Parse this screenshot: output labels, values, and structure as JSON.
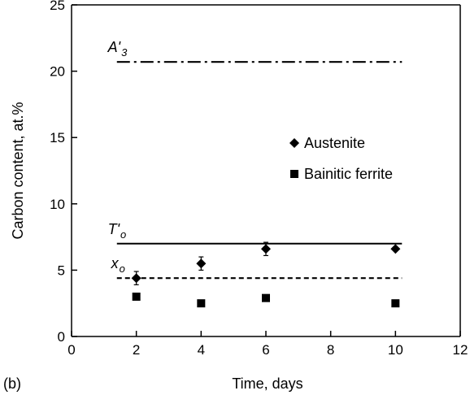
{
  "chart_data": {
    "type": "scatter",
    "xlabel": "Time, days",
    "ylabel": "Carbon content, at.%",
    "panel_label": "(b)",
    "xlim": [
      0,
      12
    ],
    "ylim": [
      0,
      25
    ],
    "xticks": [
      0,
      2,
      4,
      6,
      8,
      10,
      12
    ],
    "yticks": [
      0,
      5,
      10,
      15,
      20,
      25
    ],
    "grid": false,
    "legend_placement": "center-right",
    "series": [
      {
        "name": "Austenite",
        "marker": "diamond",
        "color": "#000000",
        "x": [
          2,
          4,
          6,
          10
        ],
        "y": [
          4.4,
          5.5,
          6.6,
          6.6
        ],
        "error": [
          0.5,
          0.5,
          0.5,
          0.0
        ]
      },
      {
        "name": "Bainitic ferrite",
        "marker": "square",
        "color": "#000000",
        "x": [
          2,
          4,
          6,
          10
        ],
        "y": [
          3.0,
          2.5,
          2.9,
          2.5
        ]
      }
    ],
    "reference_lines": [
      {
        "label": "A'",
        "subscript": "3",
        "style": "dash-dot",
        "y": 20.7,
        "x_range": [
          1.4,
          10.2
        ]
      },
      {
        "label": "T'",
        "subscript": "o",
        "style": "solid",
        "y": 7.0,
        "x_range": [
          1.4,
          10.2
        ]
      },
      {
        "label": "x",
        "subscript": "o",
        "style": "dashed",
        "y": 4.4,
        "x_range": [
          1.4,
          10.2
        ]
      }
    ]
  }
}
